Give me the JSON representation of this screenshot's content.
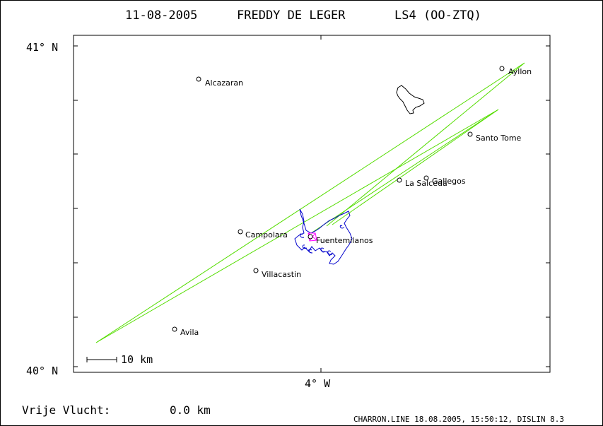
{
  "header": {
    "date": "11-08-2005",
    "pilot": "FREDDY DE LEGER",
    "glider": "LS4 (OO-ZTQ)"
  },
  "axes": {
    "lat_top": "41° N",
    "lat_bottom": "40° N",
    "lon_bottom": "4° W"
  },
  "scale": {
    "label": "10 km"
  },
  "places": [
    {
      "name": "Alcazaran"
    },
    {
      "name": "Ayllon"
    },
    {
      "name": "Santo Tome"
    },
    {
      "name": "Gallegos"
    },
    {
      "name": "La Salceda"
    },
    {
      "name": "Campolara"
    },
    {
      "name": "Fuentemilanos"
    },
    {
      "name": "Villacastin"
    },
    {
      "name": "Avila"
    }
  ],
  "footer": {
    "distance_label": "Vrije Vlucht:",
    "distance_value": "0.0 km",
    "program": "CHARRON.LINE 18.08.2005, 15:50:12, DISLIN 8.3"
  },
  "colors": {
    "route": "#55dd00",
    "track": "#0000cc",
    "marker": "#ff00ff",
    "ink": "#000000"
  }
}
